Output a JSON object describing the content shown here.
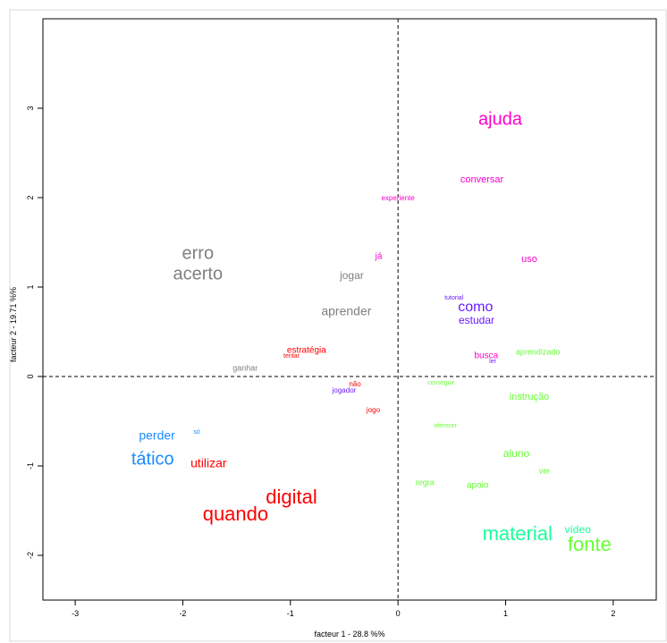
{
  "chart_data": {
    "type": "scatter",
    "xlabel": "facteur  1  - 28.8 %%",
    "ylabel": "facteur  2  - 19.71 %%",
    "xlim": [
      -3.3,
      2.4
    ],
    "ylim": [
      -2.5,
      4.0
    ],
    "x_ticks": [
      -3,
      -2,
      -1,
      0,
      1,
      2
    ],
    "y_ticks": [
      -2,
      -1,
      0,
      1,
      2,
      3
    ],
    "reference_lines": {
      "x": 0,
      "y": 0,
      "style": "dashed"
    },
    "colors": {
      "magenta": "#ff00cc",
      "grey": "#808080",
      "red": "#ff0000",
      "blue": "#1a8cff",
      "purple": "#6a1aff",
      "green": "#66ff33",
      "teal": "#1aff99"
    },
    "points": [
      {
        "label": "ajuda",
        "x": 0.95,
        "y": 2.87,
        "size": 20,
        "color": "magenta"
      },
      {
        "label": "conversar",
        "x": 0.78,
        "y": 2.2,
        "size": 11,
        "color": "magenta"
      },
      {
        "label": "experiente",
        "x": -0.0,
        "y": 1.99,
        "size": 8,
        "color": "magenta"
      },
      {
        "label": "já",
        "x": -0.18,
        "y": 1.34,
        "size": 10,
        "color": "magenta"
      },
      {
        "label": "uso",
        "x": 1.22,
        "y": 1.31,
        "size": 11,
        "color": "magenta"
      },
      {
        "label": "erro",
        "x": -1.86,
        "y": 1.37,
        "size": 20,
        "color": "grey"
      },
      {
        "label": "acerto",
        "x": -1.86,
        "y": 1.14,
        "size": 20,
        "color": "grey"
      },
      {
        "label": "jogar",
        "x": -0.43,
        "y": 1.12,
        "size": 12,
        "color": "grey"
      },
      {
        "label": "aprender",
        "x": -0.48,
        "y": 0.72,
        "size": 14,
        "color": "grey"
      },
      {
        "label": "ganhar",
        "x": -1.42,
        "y": 0.09,
        "size": 9,
        "color": "grey"
      },
      {
        "label": "tutorial",
        "x": 0.52,
        "y": 0.88,
        "size": 7,
        "color": "purple"
      },
      {
        "label": "como",
        "x": 0.72,
        "y": 0.77,
        "size": 16,
        "color": "purple"
      },
      {
        "label": "estudar",
        "x": 0.73,
        "y": 0.62,
        "size": 12,
        "color": "purple"
      },
      {
        "label": "ler",
        "x": 0.88,
        "y": 0.17,
        "size": 7,
        "color": "purple"
      },
      {
        "label": "jogador",
        "x": -0.5,
        "y": -0.16,
        "size": 8,
        "color": "purple"
      },
      {
        "label": "busca",
        "x": 0.82,
        "y": 0.23,
        "size": 10,
        "color": "magenta"
      },
      {
        "label": "aprendizado",
        "x": 1.3,
        "y": 0.27,
        "size": 9,
        "color": "green"
      },
      {
        "label": "estratégia",
        "x": -0.85,
        "y": 0.29,
        "size": 10,
        "color": "red"
      },
      {
        "label": "tentar",
        "x": -0.99,
        "y": 0.23,
        "size": 7,
        "color": "red"
      },
      {
        "label": "não",
        "x": -0.4,
        "y": -0.09,
        "size": 8,
        "color": "red"
      },
      {
        "label": "jogo",
        "x": -0.23,
        "y": -0.38,
        "size": 8,
        "color": "red"
      },
      {
        "label": "conseguir",
        "x": 0.4,
        "y": -0.07,
        "size": 7,
        "color": "green"
      },
      {
        "label": "instrução",
        "x": 1.22,
        "y": -0.23,
        "size": 11,
        "color": "green"
      },
      {
        "label": "oferecer",
        "x": 0.44,
        "y": -0.55,
        "size": 7,
        "color": "green"
      },
      {
        "label": "perder",
        "x": -2.24,
        "y": -0.67,
        "size": 14,
        "color": "blue"
      },
      {
        "label": "só",
        "x": -1.87,
        "y": -0.62,
        "size": 7,
        "color": "blue"
      },
      {
        "label": "tático",
        "x": -2.28,
        "y": -0.93,
        "size": 20,
        "color": "blue"
      },
      {
        "label": "utilizar",
        "x": -1.76,
        "y": -0.98,
        "size": 14,
        "color": "red"
      },
      {
        "label": "digital",
        "x": -0.99,
        "y": -1.36,
        "size": 22,
        "color": "red"
      },
      {
        "label": "quando",
        "x": -1.51,
        "y": -1.55,
        "size": 22,
        "color": "red"
      },
      {
        "label": "aluno",
        "x": 1.1,
        "y": -0.87,
        "size": 12,
        "color": "green"
      },
      {
        "label": "ver",
        "x": 1.36,
        "y": -1.06,
        "size": 9,
        "color": "green"
      },
      {
        "label": "regra",
        "x": 0.25,
        "y": -1.19,
        "size": 9,
        "color": "green"
      },
      {
        "label": "apoio",
        "x": 0.74,
        "y": -1.22,
        "size": 10,
        "color": "green"
      },
      {
        "label": "material",
        "x": 1.11,
        "y": -1.77,
        "size": 22,
        "color": "teal"
      },
      {
        "label": "vídeo",
        "x": 1.67,
        "y": -1.72,
        "size": 12,
        "color": "teal"
      },
      {
        "label": "fonte",
        "x": 1.78,
        "y": -1.89,
        "size": 22,
        "color": "green"
      }
    ]
  }
}
